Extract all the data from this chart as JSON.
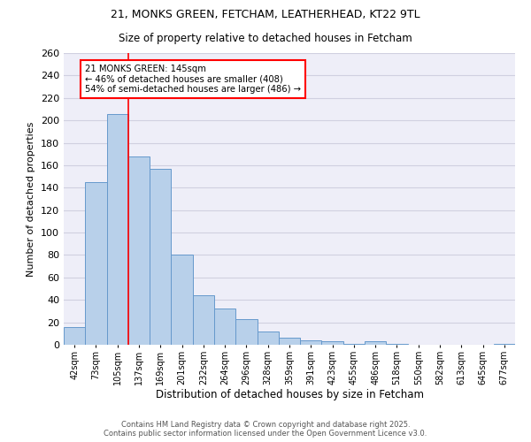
{
  "title_line1": "21, MONKS GREEN, FETCHAM, LEATHERHEAD, KT22 9TL",
  "title_line2": "Size of property relative to detached houses in Fetcham",
  "xlabel": "Distribution of detached houses by size in Fetcham",
  "ylabel": "Number of detached properties",
  "categories": [
    "42sqm",
    "73sqm",
    "105sqm",
    "137sqm",
    "169sqm",
    "201sqm",
    "232sqm",
    "264sqm",
    "296sqm",
    "328sqm",
    "359sqm",
    "391sqm",
    "423sqm",
    "455sqm",
    "486sqm",
    "518sqm",
    "550sqm",
    "582sqm",
    "613sqm",
    "645sqm",
    "677sqm"
  ],
  "values": [
    16,
    145,
    206,
    168,
    157,
    80,
    44,
    32,
    23,
    12,
    6,
    4,
    3,
    1,
    3,
    1,
    0,
    0,
    0,
    0,
    1
  ],
  "bar_color": "#b8d0ea",
  "bar_edge_color": "#6699cc",
  "red_line_x": 2.5,
  "annotation_text": "21 MONKS GREEN: 145sqm\n← 46% of detached houses are smaller (408)\n54% of semi-detached houses are larger (486) →",
  "annotation_box_color": "white",
  "annotation_box_edge_color": "red",
  "ylim": [
    0,
    260
  ],
  "yticks": [
    0,
    20,
    40,
    60,
    80,
    100,
    120,
    140,
    160,
    180,
    200,
    220,
    240,
    260
  ],
  "grid_color": "#d0d0e0",
  "background_color": "#eeeef8",
  "footer_line1": "Contains HM Land Registry data © Crown copyright and database right 2025.",
  "footer_line2": "Contains public sector information licensed under the Open Government Licence v3.0."
}
